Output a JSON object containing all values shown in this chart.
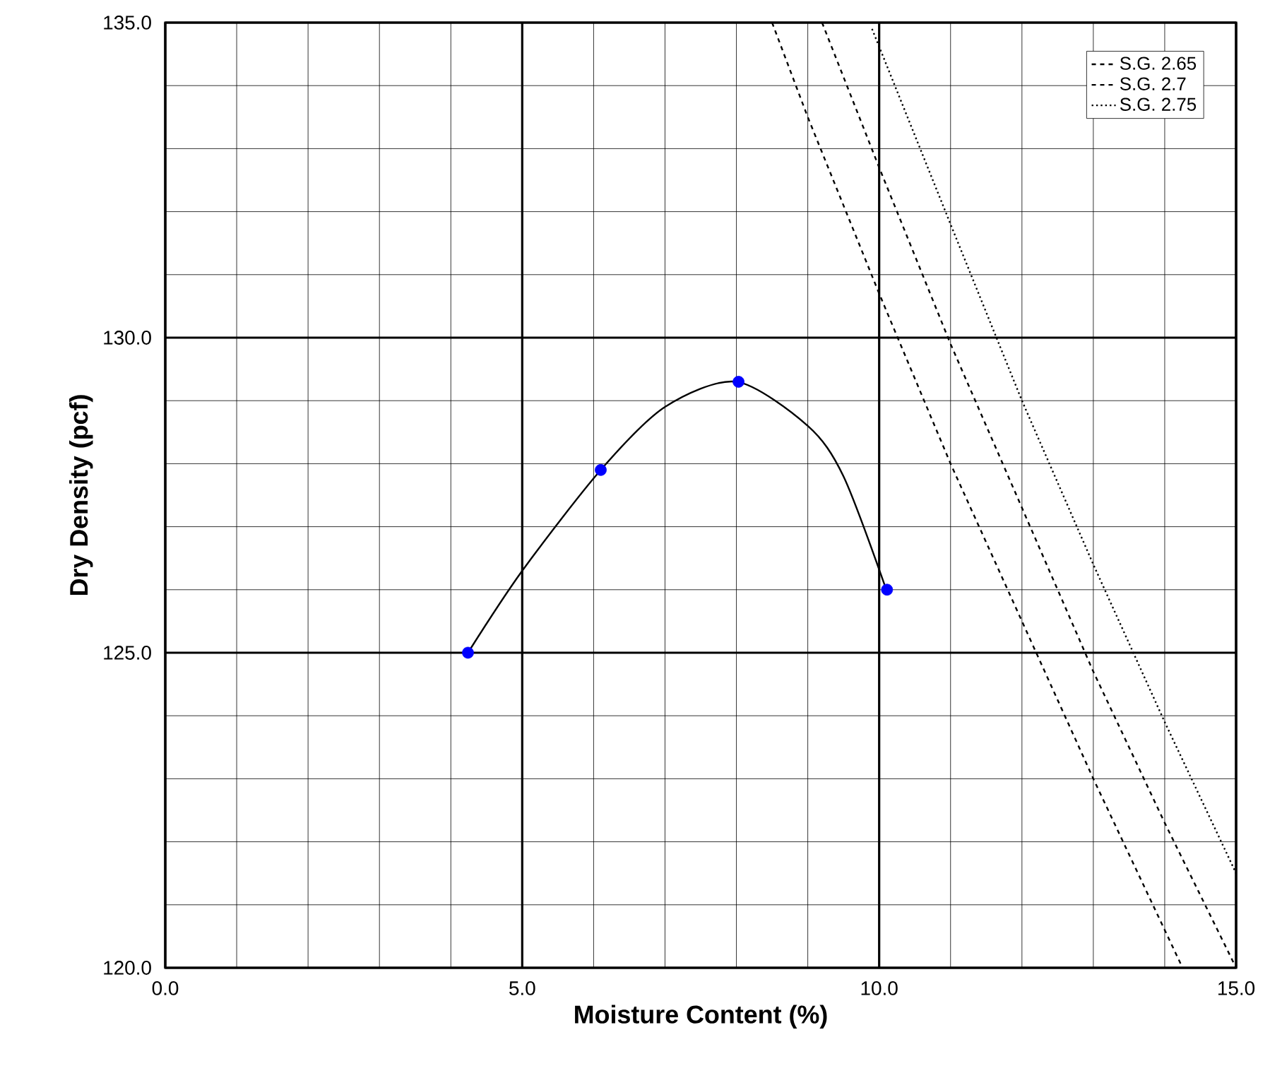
{
  "chart_data": {
    "type": "line",
    "xlabel": "Moisture Content (%)",
    "ylabel": "Dry Density (pcf)",
    "xlim": [
      0,
      15
    ],
    "ylim": [
      120,
      135
    ],
    "xticks": [
      {
        "value": 0,
        "label": "0.0"
      },
      {
        "value": 5,
        "label": "5.0"
      },
      {
        "value": 10,
        "label": "10.0"
      },
      {
        "value": 15,
        "label": "15.0"
      }
    ],
    "yticks": [
      {
        "value": 120,
        "label": "120.0"
      },
      {
        "value": 125,
        "label": "125.0"
      },
      {
        "value": 130,
        "label": "130.0"
      },
      {
        "value": 135,
        "label": "135.0"
      }
    ],
    "grid": true,
    "legend": "top right",
    "series": [
      {
        "color": "#000000",
        "line_style": "solid",
        "marker": "none",
        "x": [
          4.24,
          5.0,
          6.1,
          7.0,
          8.0,
          9.0,
          9.5,
          10.1
        ],
        "values": [
          125.0,
          126.3,
          127.9,
          128.9,
          129.3,
          128.6,
          127.8,
          126.0
        ]
      },
      {
        "type": "scatter",
        "color": "#0000ff",
        "marker": "circle",
        "x": [
          4.24,
          6.1,
          8.03,
          10.11
        ],
        "values": [
          125.0,
          127.9,
          129.3,
          126.0
        ]
      },
      {
        "name": "S.G. 2.65",
        "color": "#000000",
        "line_style": "dashed",
        "marker": "none",
        "x": [
          8.5,
          9,
          10,
          11,
          12,
          13,
          14,
          14.25
        ],
        "values": [
          135.0,
          133.5,
          130.7,
          128.0,
          125.5,
          123.0,
          120.6,
          120.0
        ]
      },
      {
        "name": "S.G. 2.7",
        "color": "#000000",
        "line_style": "dashed",
        "marker": "none",
        "x": [
          9.2,
          10,
          11,
          12,
          13,
          14,
          15
        ],
        "values": [
          135.0,
          132.7,
          129.9,
          127.3,
          124.7,
          122.3,
          120.0
        ]
      },
      {
        "name": "S.G. 2.75",
        "color": "#000000",
        "line_style": "dotted",
        "marker": "none",
        "x": [
          9.9,
          11,
          12,
          13,
          14,
          15
        ],
        "values": [
          134.9,
          131.8,
          129.0,
          126.4,
          123.9,
          121.5
        ]
      }
    ]
  }
}
